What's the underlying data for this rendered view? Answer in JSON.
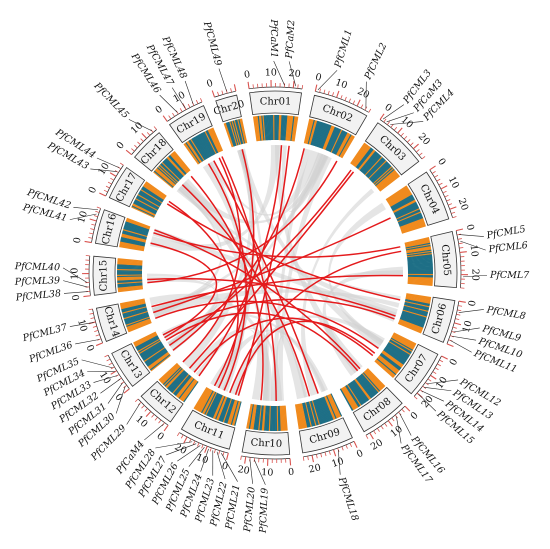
{
  "title": "",
  "colors": {
    "link": "#e41a1c",
    "background_link": "#cfcfcf",
    "density_low": "#1e6f86",
    "density_high": "#f08a1d",
    "tick": "#d9534f",
    "chromosome_box": "#f2f2f2"
  },
  "chromosomes": [
    {
      "name": "Chr01",
      "length": 24,
      "ticks": [
        "0",
        "10",
        "20"
      ]
    },
    {
      "name": "Chr02",
      "length": 26,
      "ticks": [
        "0",
        "10",
        "20"
      ]
    },
    {
      "name": "Chr03",
      "length": 26,
      "ticks": [
        "0",
        "10",
        "20"
      ]
    },
    {
      "name": "Chr04",
      "length": 24,
      "ticks": [
        "0",
        "10",
        "20"
      ]
    },
    {
      "name": "Chr05",
      "length": 26,
      "ticks": [
        "0",
        "10",
        "20"
      ]
    },
    {
      "name": "Chr06",
      "length": 20,
      "ticks": [
        "0",
        "10"
      ]
    },
    {
      "name": "Chr07",
      "length": 22,
      "ticks": [
        "0",
        "10",
        "20"
      ]
    },
    {
      "name": "Chr08",
      "length": 22,
      "ticks": [
        "0",
        "10",
        "20"
      ]
    },
    {
      "name": "Chr09",
      "length": 24,
      "ticks": [
        "0",
        "10",
        "20"
      ]
    },
    {
      "name": "Chr10",
      "length": 22,
      "ticks": [
        "0",
        "10",
        "20"
      ]
    },
    {
      "name": "Chr11",
      "length": 24,
      "ticks": [
        "0",
        "10",
        "20"
      ]
    },
    {
      "name": "Chr12",
      "length": 18,
      "ticks": [
        "0",
        "10"
      ]
    },
    {
      "name": "Chr13",
      "length": 18,
      "ticks": [
        "0",
        "10"
      ]
    },
    {
      "name": "Chr14",
      "length": 16,
      "ticks": [
        "0",
        "10"
      ]
    },
    {
      "name": "Chr15",
      "length": 18,
      "ticks": [
        "0",
        "10"
      ]
    },
    {
      "name": "Chr16",
      "length": 16,
      "ticks": [
        "0",
        "10"
      ]
    },
    {
      "name": "Chr17",
      "length": 16,
      "ticks": [
        "0",
        "10"
      ]
    },
    {
      "name": "Chr18",
      "length": 16,
      "ticks": [
        "0",
        "10"
      ]
    },
    {
      "name": "Chr19",
      "length": 18,
      "ticks": [
        "0",
        "10"
      ]
    },
    {
      "name": "Chr20",
      "length": 10,
      "ticks": [
        "0"
      ]
    }
  ],
  "genes": [
    {
      "name": "PfCaM1",
      "chr": "Chr01",
      "pos": 16
    },
    {
      "name": "PfCaM2",
      "chr": "Chr01",
      "pos": 21
    },
    {
      "name": "PfCML1",
      "chr": "Chr02",
      "pos": 1
    },
    {
      "name": "PfCML2",
      "chr": "Chr02",
      "pos": 24
    },
    {
      "name": "PfCML3",
      "chr": "Chr03",
      "pos": 1
    },
    {
      "name": "PfCaM3",
      "chr": "Chr03",
      "pos": 3
    },
    {
      "name": "PfCML4",
      "chr": "Chr03",
      "pos": 5
    },
    {
      "name": "PfCML5",
      "chr": "Chr05",
      "pos": 2
    },
    {
      "name": "PfCML6",
      "chr": "Chr05",
      "pos": 5
    },
    {
      "name": "PfCML7",
      "chr": "Chr05",
      "pos": 21
    },
    {
      "name": "PfCML8",
      "chr": "Chr06",
      "pos": 5
    },
    {
      "name": "PfCML9",
      "chr": "Chr06",
      "pos": 14
    },
    {
      "name": "PfCML10",
      "chr": "Chr06",
      "pos": 16
    },
    {
      "name": "PfCML11",
      "chr": "Chr06",
      "pos": 18
    },
    {
      "name": "PfCML12",
      "chr": "Chr07",
      "pos": 14
    },
    {
      "name": "PfCML13",
      "chr": "Chr07",
      "pos": 16
    },
    {
      "name": "PfCML14",
      "chr": "Chr07",
      "pos": 18
    },
    {
      "name": "PfCML15",
      "chr": "Chr07",
      "pos": 20
    },
    {
      "name": "PfCML16",
      "chr": "Chr08",
      "pos": 4
    },
    {
      "name": "PfCML17",
      "chr": "Chr08",
      "pos": 6
    },
    {
      "name": "PfCML18",
      "chr": "Chr09",
      "pos": 8
    },
    {
      "name": "PfCML19",
      "chr": "Chr10",
      "pos": 16
    },
    {
      "name": "PfCML20",
      "chr": "Chr10",
      "pos": 18
    },
    {
      "name": "PfCML21",
      "chr": "Chr11",
      "pos": 3
    },
    {
      "name": "PfCML22",
      "chr": "Chr11",
      "pos": 5
    },
    {
      "name": "PfCML23",
      "chr": "Chr11",
      "pos": 7
    },
    {
      "name": "PfCML24",
      "chr": "Chr11",
      "pos": 9
    },
    {
      "name": "PfCML25",
      "chr": "Chr11",
      "pos": 11
    },
    {
      "name": "PfCML26",
      "chr": "Chr11",
      "pos": 13
    },
    {
      "name": "PfCML27",
      "chr": "Chr11",
      "pos": 15
    },
    {
      "name": "PfCML28",
      "chr": "Chr11",
      "pos": 17
    },
    {
      "name": "PfCaM4",
      "chr": "Chr12",
      "pos": 2
    },
    {
      "name": "PfCML29",
      "chr": "Chr12",
      "pos": 16
    },
    {
      "name": "PfCML30",
      "chr": "Chr13",
      "pos": 2
    },
    {
      "name": "PfCML31",
      "chr": "Chr13",
      "pos": 4
    },
    {
      "name": "PfCML32",
      "chr": "Chr13",
      "pos": 6
    },
    {
      "name": "PfCML33",
      "chr": "Chr13",
      "pos": 8
    },
    {
      "name": "PfCML34",
      "chr": "Chr13",
      "pos": 10
    },
    {
      "name": "PfCML35",
      "chr": "Chr13",
      "pos": 12
    },
    {
      "name": "PfCML36",
      "chr": "Chr14",
      "pos": 2
    },
    {
      "name": "PfCML37",
      "chr": "Chr14",
      "pos": 10
    },
    {
      "name": "PfCML38",
      "chr": "Chr15",
      "pos": 2
    },
    {
      "name": "PfCML39",
      "chr": "Chr15",
      "pos": 4
    },
    {
      "name": "PfCML40",
      "chr": "Chr15",
      "pos": 6
    },
    {
      "name": "PfCML41",
      "chr": "Chr16",
      "pos": 13
    },
    {
      "name": "PfCML42",
      "chr": "Chr16",
      "pos": 15
    },
    {
      "name": "PfCML43",
      "chr": "Chr17",
      "pos": 12
    },
    {
      "name": "PfCML44",
      "chr": "Chr17",
      "pos": 14
    },
    {
      "name": "PfCML45",
      "chr": "Chr18",
      "pos": 14
    },
    {
      "name": "PfCML46",
      "chr": "Chr19",
      "pos": 6
    },
    {
      "name": "PfCML47",
      "chr": "Chr19",
      "pos": 10
    },
    {
      "name": "PfCML48",
      "chr": "Chr19",
      "pos": 14
    },
    {
      "name": "PfCML49",
      "chr": "Chr20",
      "pos": 6
    }
  ],
  "links": [
    [
      "Chr01",
      16,
      "Chr12",
      2
    ],
    [
      "Chr02",
      24,
      "Chr15",
      4
    ],
    [
      "Chr03",
      3,
      "Chr13",
      6
    ],
    [
      "Chr05",
      2,
      "Chr16",
      13
    ],
    [
      "Chr05",
      5,
      "Chr11",
      9
    ],
    [
      "Chr05",
      21,
      "Chr14",
      10
    ],
    [
      "Chr06",
      5,
      "Chr17",
      12
    ],
    [
      "Chr06",
      16,
      "Chr15",
      6
    ],
    [
      "Chr07",
      14,
      "Chr14",
      2
    ],
    [
      "Chr07",
      18,
      "Chr11",
      5
    ],
    [
      "Chr08",
      4,
      "Chr16",
      15
    ],
    [
      "Chr08",
      6,
      "Chr13",
      10
    ],
    [
      "Chr09",
      8,
      "Chr19",
      10
    ],
    [
      "Chr10",
      16,
      "Chr18",
      14
    ],
    [
      "Chr11",
      13,
      "Chr19",
      6
    ],
    [
      "Chr11",
      17,
      "Chr17",
      14
    ],
    [
      "Chr12",
      16,
      "Chr19",
      14
    ],
    [
      "Chr13",
      12,
      "Chr16",
      6
    ],
    [
      "Chr01",
      21,
      "Chr11",
      3
    ],
    [
      "Chr03",
      5,
      "Chr12",
      10
    ],
    [
      "Chr02",
      1,
      "Chr13",
      2
    ],
    [
      "Chr04",
      12,
      "Chr14",
      6
    ],
    [
      "Chr06",
      18,
      "Chr13",
      14
    ],
    [
      "Chr07",
      20,
      "Chr12",
      6
    ],
    [
      "Chr09",
      14,
      "Chr18",
      6
    ],
    [
      "Chr10",
      6,
      "Chr19",
      16
    ],
    [
      "Chr20",
      6,
      "Chr11",
      20
    ]
  ]
}
